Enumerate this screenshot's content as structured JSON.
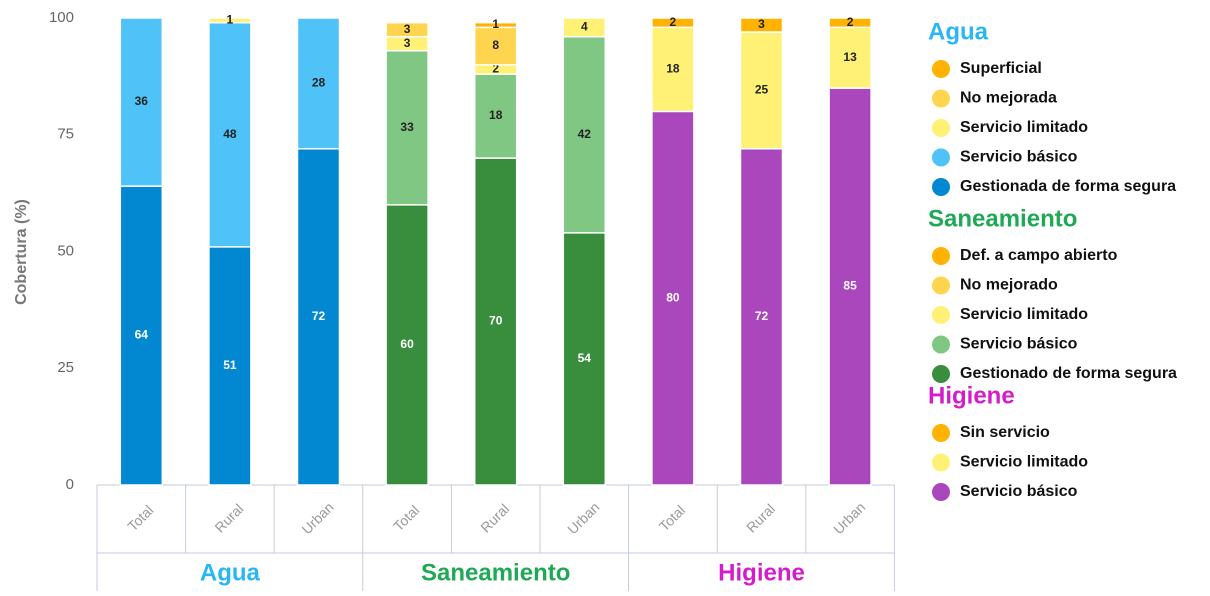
{
  "chart_data": {
    "type": "bar",
    "stacked": true,
    "y_label": "Cobertura (%)",
    "ylim": [
      0,
      100
    ],
    "yticks": [
      0,
      25,
      50,
      75,
      100
    ],
    "grid": false,
    "groups": [
      {
        "name": "Agua",
        "color": "#29b6f6",
        "categories": [
          "Total",
          "Rural",
          "Urban"
        ],
        "series": [
          {
            "name": "Gestionada de forma segura",
            "color": "#0288d1",
            "values": [
              64,
              51,
              72
            ]
          },
          {
            "name": "Servicio básico",
            "color": "#4fc3f7",
            "values": [
              36,
              48,
              28
            ]
          },
          {
            "name": "Servicio limitado",
            "color": "#fff176",
            "values": [
              null,
              1,
              null
            ]
          },
          {
            "name": "No mejorada",
            "color": "#ffd54f",
            "values": [
              null,
              null,
              null
            ]
          },
          {
            "name": "Superficial",
            "color": "#ffb300",
            "values": [
              null,
              null,
              null
            ]
          }
        ]
      },
      {
        "name": "Saneamiento",
        "color": "#1fa855",
        "categories": [
          "Total",
          "Rural",
          "Urban"
        ],
        "series": [
          {
            "name": "Gestionado de forma segura",
            "color": "#388e3c",
            "values": [
              60,
              70,
              54
            ]
          },
          {
            "name": "Servicio básico",
            "color": "#81c784",
            "values": [
              33,
              18,
              42
            ]
          },
          {
            "name": "Servicio limitado",
            "color": "#fff176",
            "values": [
              3,
              2,
              4
            ]
          },
          {
            "name": "No mejorado",
            "color": "#ffd54f",
            "values": [
              3,
              8,
              null
            ]
          },
          {
            "name": "Def. a campo abierto",
            "color": "#ffb300",
            "values": [
              null,
              1,
              null
            ]
          }
        ]
      },
      {
        "name": "Higiene",
        "color": "#d41ccc",
        "categories": [
          "Total",
          "Rural",
          "Urban"
        ],
        "series": [
          {
            "name": "Servicio básico",
            "color": "#ab47bc",
            "values": [
              80,
              72,
              85
            ]
          },
          {
            "name": "Servicio limitado",
            "color": "#fff176",
            "values": [
              18,
              25,
              13
            ]
          },
          {
            "name": "Sin servicio",
            "color": "#ffb300",
            "values": [
              2,
              3,
              2
            ]
          }
        ]
      }
    ]
  }
}
